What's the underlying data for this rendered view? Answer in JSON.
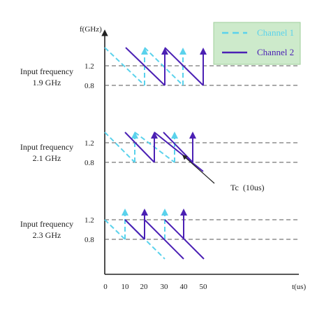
{
  "y_axis_label": "f(GHz)",
  "x_axis_label": "t(us)",
  "x_ticks": [
    "0",
    "10",
    "20",
    "30",
    "40",
    "50"
  ],
  "legend": [
    {
      "label": "Channel 1",
      "color": "#5ad2ec",
      "style": "dashed"
    },
    {
      "label": "Channel 2",
      "color": "#4b20b4",
      "style": "solid"
    }
  ],
  "panels": [
    {
      "label_line1": "Input frequency",
      "label_line2": "1.9 GHz",
      "level_high": "1.2",
      "level_low": "0.8"
    },
    {
      "label_line1": "Input frequency",
      "label_line2": "2.1 GHz",
      "level_high": "1.2",
      "level_low": "0.8"
    },
    {
      "label_line1": "Input frequency",
      "label_line2": "2.3 GHz",
      "level_high": "1.2",
      "level_low": "0.8"
    }
  ],
  "annotation": "Tc  (10us)",
  "colors": {
    "channel1": "#5ad2ec",
    "channel2": "#4b20b4",
    "legend_bg": "#cdeacb",
    "legend_border": "#9fcf9b",
    "reference_line": "#555555",
    "axis": "#222222"
  }
}
